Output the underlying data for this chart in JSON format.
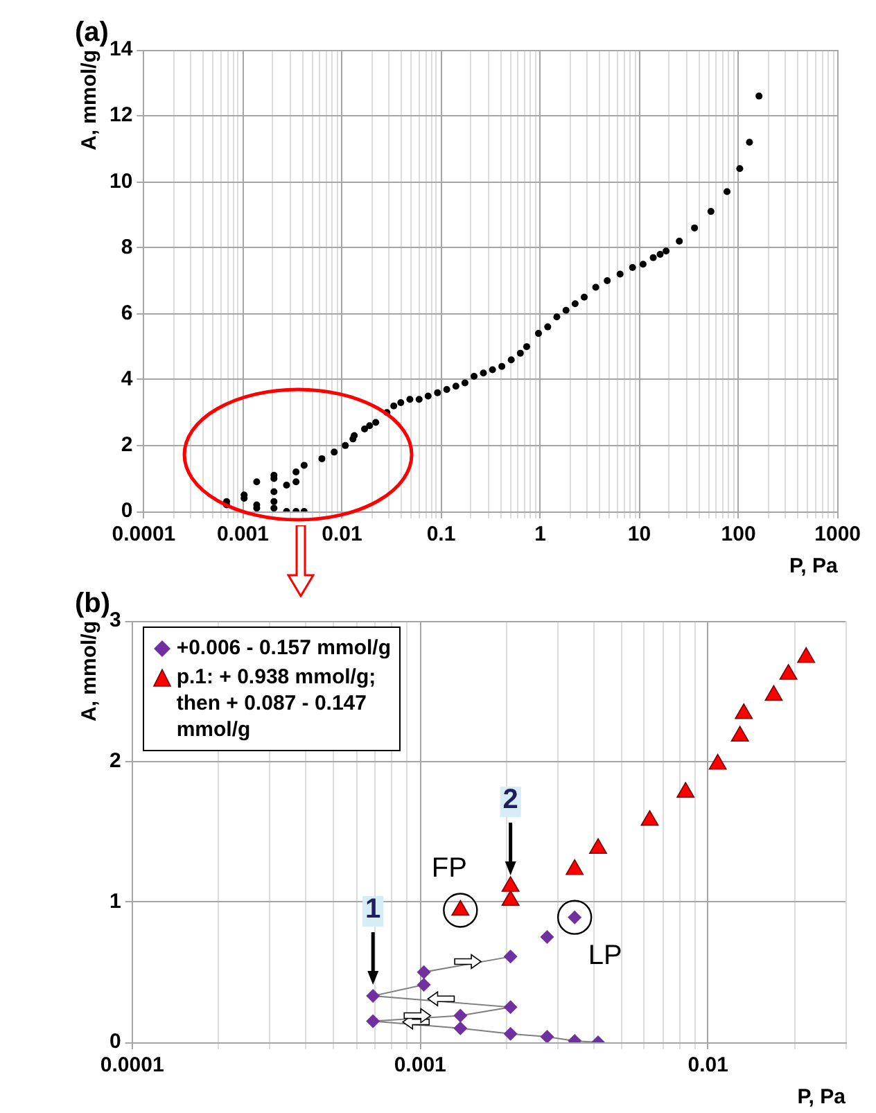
{
  "chart_data": [
    {
      "type": "scatter",
      "title": "(a)",
      "xlabel": "P, Pa",
      "ylabel": "A, mmol/g",
      "log": "x",
      "grid": true,
      "marker": "circle",
      "xlim": [
        0.0001,
        1000
      ],
      "ylim": [
        0,
        14
      ],
      "xticks": [
        0.0001,
        {
          "value": 0.0002,
          "label": null
        },
        {
          "value": 0.0003,
          "label": null
        },
        {
          "value": 0.0004,
          "label": null
        },
        {
          "value": 0.0005,
          "label": null
        },
        {
          "value": 0.0006,
          "label": null
        },
        {
          "value": 0.0007,
          "label": null
        },
        {
          "value": 0.0008,
          "label": null
        },
        {
          "value": 0.0009,
          "label": null
        },
        0.001,
        {
          "value": 0.002,
          "label": null
        },
        {
          "value": 0.003,
          "label": null
        },
        {
          "value": 0.004,
          "label": null
        },
        {
          "value": 0.005,
          "label": null
        },
        {
          "value": 0.006,
          "label": null
        },
        {
          "value": 0.007,
          "label": null
        },
        {
          "value": 0.008,
          "label": null
        },
        {
          "value": 0.009,
          "label": null
        },
        0.01,
        {
          "value": 0.02,
          "label": null
        },
        {
          "value": 0.03,
          "label": null
        },
        {
          "value": 0.04,
          "label": null
        },
        {
          "value": 0.05,
          "label": null
        },
        {
          "value": 0.06,
          "label": null
        },
        {
          "value": 0.07,
          "label": null
        },
        {
          "value": 0.08,
          "label": null
        },
        {
          "value": 0.09,
          "label": null
        },
        0.1,
        {
          "value": 0.2,
          "label": null
        },
        {
          "value": 0.3,
          "label": null
        },
        {
          "value": 0.4,
          "label": null
        },
        {
          "value": 0.5,
          "label": null
        },
        {
          "value": 0.6,
          "label": null
        },
        {
          "value": 0.7,
          "label": null
        },
        {
          "value": 0.8,
          "label": null
        },
        {
          "value": 0.9,
          "label": null
        },
        1,
        {
          "value": 2,
          "label": null
        },
        {
          "value": 3,
          "label": null
        },
        {
          "value": 4,
          "label": null
        },
        {
          "value": 5,
          "label": null
        },
        {
          "value": 6,
          "label": null
        },
        {
          "value": 7,
          "label": null
        },
        {
          "value": 8,
          "label": null
        },
        {
          "value": 9,
          "label": null
        },
        10,
        {
          "value": 20,
          "label": null
        },
        {
          "value": 30,
          "label": null
        },
        {
          "value": 40,
          "label": null
        },
        {
          "value": 50,
          "label": null
        },
        {
          "value": 60,
          "label": null
        },
        {
          "value": 70,
          "label": null
        },
        {
          "value": 80,
          "label": null
        },
        {
          "value": 90,
          "label": null
        },
        100,
        {
          "value": 200,
          "label": null
        },
        {
          "value": 300,
          "label": null
        },
        {
          "value": 400,
          "label": null
        },
        {
          "value": 500,
          "label": null
        },
        {
          "value": 600,
          "label": null
        },
        {
          "value": 700,
          "label": null
        },
        {
          "value": 800,
          "label": null
        },
        {
          "value": 900,
          "label": null
        },
        1000
      ],
      "yticks": [
        0,
        2,
        4,
        6,
        8,
        10,
        12,
        14
      ],
      "series": [
        {
          "color": "#000000",
          "x": [
            0.000686,
            0.000686,
            0.00103,
            0.00103,
            0.00138,
            0.00138,
            0.00206,
            0.00206,
            0.00206,
            0.00276,
            0.00276,
            0.00344,
            0.00344,
            0.00415,
            0.00138,
            0.00206,
            0.00206,
            0.00344,
            0.00415,
            0.00627,
            0.00835,
            0.0108,
            0.0129,
            0.0133,
            0.0169,
            0.019,
            0.0219,
            0.0284,
            0.0333,
            0.0392,
            0.0484,
            0.06,
            0.074,
            0.092,
            0.114,
            0.141,
            0.174,
            0.215,
            0.267,
            0.33,
            0.41,
            0.51,
            0.63,
            0.73,
            0.96,
            1.19,
            1.47,
            1.82,
            2.25,
            2.78,
            3.63,
            4.74,
            6.39,
            8.53,
            10.9,
            13.8,
            16.2,
            18.6,
            25.3,
            36,
            52.7,
            76.6,
            103,
            129,
            161
          ],
          "values": [
            0.3,
            0.2,
            0.5,
            0.4,
            0.2,
            0.1,
            0.6,
            0.3,
            0.1,
            0.8,
            0,
            0.9,
            0,
            0,
            0.9,
            1.1,
            1.0,
            1.2,
            1.4,
            1.6,
            1.8,
            2.0,
            2.2,
            2.3,
            2.5,
            2.6,
            2.7,
            3.0,
            3.2,
            3.3,
            3.4,
            3.4,
            3.5,
            3.6,
            3.7,
            3.8,
            3.9,
            4.1,
            4.2,
            4.3,
            4.4,
            4.6,
            4.8,
            5.0,
            5.4,
            5.6,
            5.9,
            6.1,
            6.3,
            6.5,
            6.8,
            7.0,
            7.2,
            7.4,
            7.5,
            7.7,
            7.8,
            7.9,
            8.2,
            8.6,
            9.1,
            9.7,
            10.4,
            11.2,
            12.6
          ]
        }
      ]
    },
    {
      "type": "scatter",
      "title": "(b)",
      "xlabel": "P, Pa",
      "ylabel": "A, mmol/g",
      "log": "x",
      "grid": true,
      "legend": "top left",
      "xlim": [
        0.0001,
        0.03
      ],
      "ylim": [
        0,
        3
      ],
      "xticks": [
        0.0001,
        {
          "value": 0.0002,
          "label": null
        },
        {
          "value": 0.0003,
          "label": null
        },
        {
          "value": 0.0004,
          "label": null
        },
        {
          "value": 0.0005,
          "label": null
        },
        {
          "value": 0.0006,
          "label": null
        },
        {
          "value": 0.0007,
          "label": null
        },
        {
          "value": 0.0008,
          "label": null
        },
        {
          "value": 0.0009,
          "label": null
        },
        0.001,
        {
          "value": 0.002,
          "label": null
        },
        {
          "value": 0.003,
          "label": null
        },
        {
          "value": 0.004,
          "label": null
        },
        {
          "value": 0.005,
          "label": null
        },
        {
          "value": 0.006,
          "label": null
        },
        {
          "value": 0.007,
          "label": null
        },
        {
          "value": 0.008,
          "label": null
        },
        {
          "value": 0.009,
          "label": null
        },
        0.01,
        {
          "value": 0.02,
          "label": null
        },
        {
          "value": 0.03,
          "label": null
        }
      ],
      "yticks": [
        0,
        1,
        2,
        3
      ],
      "series": [
        {
          "type": "line",
          "color": "#808080",
          "marker": "none",
          "line_style": "solid",
          "x": [
            0.00415,
            0.00344,
            0.00276,
            0.00206,
            0.00138,
            0.000686,
            0.00138,
            0.00206,
            0.000686,
            0.00103,
            0.00103,
            0.00206
          ],
          "values": [
            0,
            0.01,
            0.04,
            0.06,
            0.1,
            0.15,
            0.19,
            0.25,
            0.33,
            0.41,
            0.5,
            0.61
          ]
        },
        {
          "name": "+0.006 - 0.157 mmol/g",
          "color": "#7030a0",
          "marker": "diamond",
          "x": [
            0.00415,
            0.00344,
            0.00276,
            0.00206,
            0.00138,
            0.000686,
            0.00138,
            0.00206,
            0.000686,
            0.00103,
            0.00103,
            0.00206,
            0.00276,
            0.00344
          ],
          "values": [
            0,
            0.01,
            0.04,
            0.06,
            0.1,
            0.15,
            0.19,
            0.25,
            0.33,
            0.41,
            0.5,
            0.61,
            0.75,
            0.89
          ]
        },
        {
          "name": "p.1: + 0.938 mmol/g; then + 0.087 - 0.147 mmol/g",
          "color": "#ff0000",
          "marker": "triangle",
          "x": [
            0.00138,
            0.00206,
            0.00206,
            0.00344,
            0.00415,
            0.00627,
            0.00835,
            0.0108,
            0.0129,
            0.0133,
            0.0169,
            0.019,
            0.0219
          ],
          "values": [
            0.94,
            1.01,
            1.11,
            1.23,
            1.38,
            1.58,
            1.78,
            1.98,
            2.18,
            2.34,
            2.47,
            2.62,
            2.74
          ]
        }
      ],
      "annotations": [
        {
          "text": "1",
          "x": 0.000686,
          "y": 0.33
        },
        {
          "text": "2",
          "x": 0.00206,
          "y": 1.11
        },
        {
          "text": "FP",
          "x": 0.00138,
          "y": 0.94
        },
        {
          "text": "LP",
          "x": 0.00344,
          "y": 0.89
        }
      ]
    }
  ]
}
